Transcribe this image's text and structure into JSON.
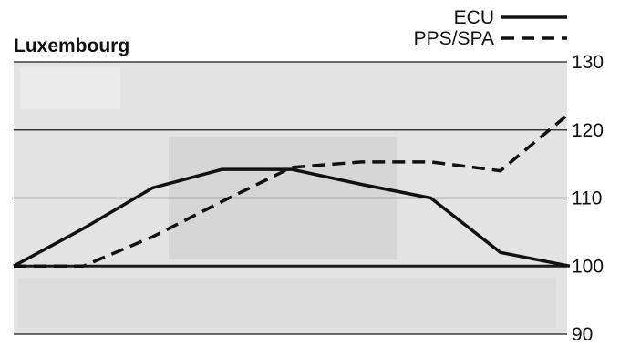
{
  "chart_data": {
    "type": "line",
    "title": "Luxembourg",
    "xlabel": "",
    "ylabel": "",
    "x": [
      0,
      1,
      2,
      3,
      4,
      5,
      6,
      7,
      8
    ],
    "ylim": [
      90,
      130
    ],
    "yticks": [
      90,
      100,
      110,
      120,
      130
    ],
    "y_axis_side": "right",
    "grid": true,
    "legend_position": "top-right",
    "series": [
      {
        "name": "ECU",
        "line_style": "solid",
        "values": [
          100,
          105.5,
          111.5,
          114.2,
          114.2,
          112,
          110,
          102,
          100
        ]
      },
      {
        "name": "PPS/SPA",
        "line_style": "dashed",
        "values": [
          100,
          100,
          104.3,
          109.5,
          114.5,
          115.3,
          115.3,
          114,
          122.5
        ]
      }
    ],
    "colors": {
      "line": "#111111",
      "grid": "#1a1a1a",
      "plot_background": "#e3e3e3"
    }
  }
}
